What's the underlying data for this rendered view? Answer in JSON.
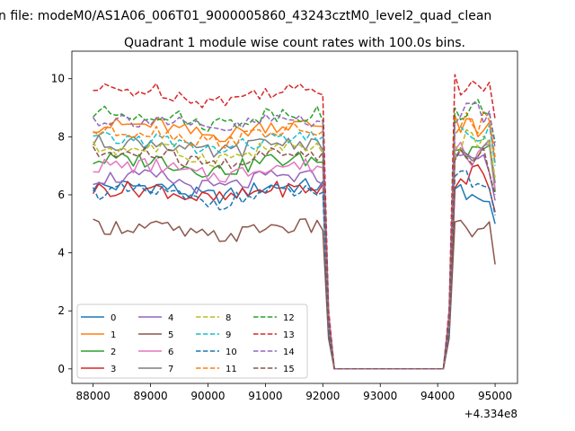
{
  "figure": {
    "suptitle": "n file: modeM0/AS1A06_006T01_9000005860_43243cztM0_level2_quad_clean",
    "title": "Quadrant 1 module wise count rates with 100.0s bins.",
    "x_offset_label": "+4.334e8"
  },
  "chart_data": {
    "type": "line",
    "title": "Quadrant 1 module wise count rates with 100.0s bins.",
    "xlabel": "",
    "ylabel": "",
    "x_offset": 433400000,
    "xlim": [
      87630,
      95390
    ],
    "ylim": [
      -0.5,
      10.95
    ],
    "xticks": [
      88000,
      89000,
      90000,
      91000,
      92000,
      93000,
      94000,
      95000
    ],
    "yticks": [
      0,
      2,
      4,
      6,
      8,
      10
    ],
    "legend_position": "lower-left",
    "legend_columns": 4,
    "grid": false,
    "note_values": "x values are offsets from +4.334e8; series levels are approximate per segment",
    "segments": [
      {
        "x_start": 88000,
        "x_end": 92000,
        "step": 100
      },
      {
        "x_start": 94300,
        "x_end": 95000,
        "step": 100
      }
    ],
    "gap": {
      "x": [
        92100,
        92200,
        94100,
        94200
      ],
      "y": [
        1.5,
        0,
        0,
        1.5
      ]
    },
    "series": [
      {
        "name": "0",
        "color": "#1f77b4",
        "dash": "solid",
        "level": 6.3,
        "post": 6.2
      },
      {
        "name": "1",
        "color": "#ff7f0e",
        "dash": "solid",
        "level": 8.4,
        "post": 8.3
      },
      {
        "name": "2",
        "color": "#2ca02c",
        "dash": "solid",
        "level": 7.2,
        "post": 7.3
      },
      {
        "name": "3",
        "color": "#d62728",
        "dash": "solid",
        "level": 6.2,
        "post": 6.6
      },
      {
        "name": "4",
        "color": "#9467bd",
        "dash": "solid",
        "level": 6.6,
        "post": 7.0
      },
      {
        "name": "5",
        "color": "#8c564b",
        "dash": "solid",
        "level": 4.9,
        "post": 4.8
      },
      {
        "name": "6",
        "color": "#e377c2",
        "dash": "solid",
        "level": 7.0,
        "post": 7.4
      },
      {
        "name": "7",
        "color": "#7f7f7f",
        "dash": "solid",
        "level": 7.8,
        "post": 7.6
      },
      {
        "name": "8",
        "color": "#bcbd22",
        "dash": "dashed",
        "level": 7.6,
        "post": 7.8
      },
      {
        "name": "9",
        "color": "#17becf",
        "dash": "dashed",
        "level": 7.9,
        "post": 8.2
      },
      {
        "name": "10",
        "color": "#1f77b4",
        "dash": "dashed",
        "level": 6.1,
        "post": 6.5
      },
      {
        "name": "11",
        "color": "#ff7f0e",
        "dash": "dashed",
        "level": 8.2,
        "post": 8.5
      },
      {
        "name": "12",
        "color": "#2ca02c",
        "dash": "dashed",
        "level": 8.8,
        "post": 9.0
      },
      {
        "name": "13",
        "color": "#d62728",
        "dash": "dashed",
        "level": 9.6,
        "post": 9.8
      },
      {
        "name": "14",
        "color": "#9467bd",
        "dash": "dashed",
        "level": 8.6,
        "post": 8.8
      },
      {
        "name": "15",
        "color": "#8c564b",
        "dash": "dashed",
        "level": 7.4,
        "post": 7.2
      }
    ]
  }
}
